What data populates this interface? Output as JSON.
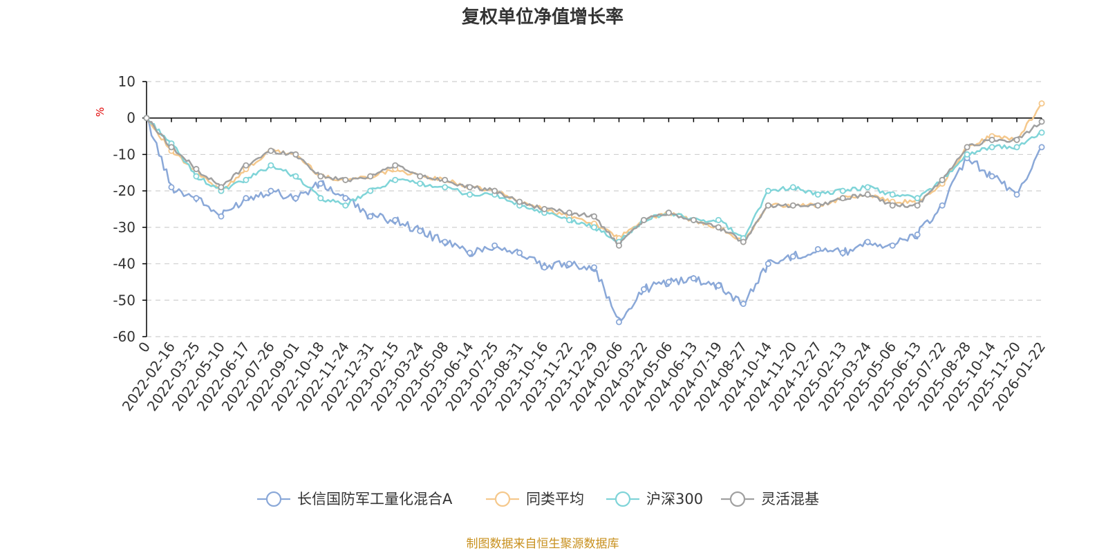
{
  "chart_data": {
    "type": "line",
    "title": "复权单位净值增长率",
    "ylabel": "%",
    "ylim": [
      -60,
      10
    ],
    "yticks": [
      10,
      0,
      -10,
      -20,
      -30,
      -40,
      -50,
      -60
    ],
    "grid": true,
    "legend_position": "bottom",
    "x_tick_labels": [
      "0",
      "2022-02-16",
      "2022-03-25",
      "2022-05-10",
      "2022-06-17",
      "2022-07-26",
      "2022-09-01",
      "2022-10-18",
      "2022-11-24",
      "2022-12-31",
      "2023-02-15",
      "2023-03-24",
      "2023-05-08",
      "2023-06-14",
      "2023-07-25",
      "2023-08-31",
      "2023-10-16",
      "2023-11-22",
      "2023-12-29",
      "2024-02-06",
      "2024-03-22",
      "2024-05-06",
      "2024-06-13",
      "2024-07-19",
      "2024-08-27",
      "2024-10-14",
      "2024-11-20",
      "2024-12-27",
      "2025-02-13",
      "2025-03-24",
      "2025-05-06",
      "2025-06-13",
      "2025-07-22",
      "2025-08-28",
      "2025-10-14",
      "2025-11-20",
      "2026-01-22"
    ],
    "x": [
      "0",
      "2022-02-16",
      "2022-03-25",
      "2022-05-10",
      "2022-06-17",
      "2022-07-26",
      "2022-09-01",
      "2022-10-18",
      "2022-11-24",
      "2022-12-31",
      "2023-02-15",
      "2023-03-24",
      "2023-05-08",
      "2023-06-14",
      "2023-07-25",
      "2023-08-31",
      "2023-10-16",
      "2023-11-22",
      "2023-12-29",
      "2024-02-06",
      "2024-03-22",
      "2024-05-06",
      "2024-06-13",
      "2024-07-19",
      "2024-08-27",
      "2024-10-14",
      "2024-11-20",
      "2024-12-27",
      "2025-02-13",
      "2025-03-24",
      "2025-05-06",
      "2025-06-13",
      "2025-07-22",
      "2025-08-28",
      "2025-10-14",
      "2025-11-20",
      "2026-01-22"
    ],
    "series": [
      {
        "name": "长信国防军工量化混合A",
        "color": "#8aa8d8",
        "values": [
          0,
          -19,
          -22,
          -27,
          -22,
          -20,
          -22,
          -18,
          -22,
          -27,
          -28,
          -31,
          -34,
          -37,
          -35,
          -37,
          -41,
          -40,
          -41,
          -56,
          -47,
          -45,
          -44,
          -46,
          -51,
          -40,
          -38,
          -36,
          -37,
          -34,
          -35,
          -32,
          -24,
          -11,
          -16,
          -21,
          -8
        ]
      },
      {
        "name": "同类平均",
        "color": "#f5c88c",
        "values": [
          0,
          -9,
          -15,
          -20,
          -14,
          -9,
          -10,
          -16,
          -17,
          -16,
          -14,
          -16,
          -17,
          -19,
          -20,
          -23,
          -25,
          -27,
          -29,
          -33,
          -28,
          -26,
          -28,
          -30,
          -34,
          -24,
          -24,
          -24,
          -22,
          -21,
          -23,
          -23,
          -18,
          -8,
          -5,
          -6,
          4
        ]
      },
      {
        "name": "沪深300",
        "color": "#7fd4d8",
        "values": [
          0,
          -7,
          -16,
          -20,
          -17,
          -13,
          -16,
          -22,
          -24,
          -20,
          -17,
          -18,
          -19,
          -21,
          -21,
          -24,
          -26,
          -28,
          -30,
          -34,
          -28,
          -26,
          -28,
          -28,
          -33,
          -20,
          -19,
          -21,
          -20,
          -19,
          -21,
          -22,
          -17,
          -10,
          -8,
          -8,
          -4
        ]
      },
      {
        "name": "灵活混基",
        "color": "#a0a0a0",
        "values": [
          0,
          -8,
          -14,
          -19,
          -13,
          -9,
          -10,
          -16,
          -17,
          -16,
          -13,
          -16,
          -17,
          -19,
          -20,
          -23,
          -25,
          -26,
          -27,
          -35,
          -28,
          -26,
          -28,
          -30,
          -34,
          -24,
          -24,
          -24,
          -22,
          -21,
          -24,
          -24,
          -17,
          -8,
          -6,
          -6,
          -1
        ]
      }
    ]
  },
  "source_note": "制图数据来自恒生聚源数据库"
}
